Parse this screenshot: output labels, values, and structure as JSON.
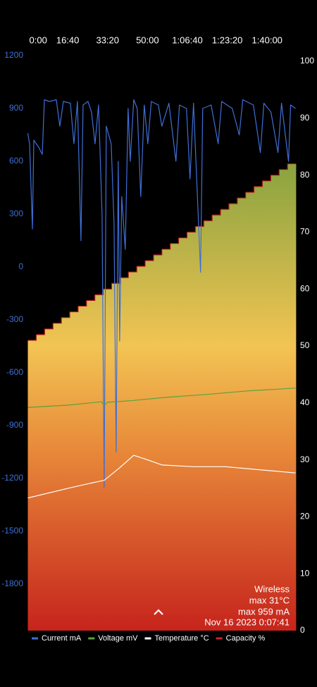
{
  "chart_data": {
    "type": "line",
    "xlim": [
      0,
      6720
    ],
    "xticks": [
      {
        "value": 0,
        "label": "0:00"
      },
      {
        "value": 1000,
        "label": "16:40"
      },
      {
        "value": 2000,
        "label": "33:20"
      },
      {
        "value": 3000,
        "label": "50:00"
      },
      {
        "value": 4000,
        "label": "1:06:40"
      },
      {
        "value": 5000,
        "label": "1:23:20"
      },
      {
        "value": 6000,
        "label": "1:40:00"
      }
    ],
    "ylim": [
      -2064,
      1168
    ],
    "yticks": [
      -1800,
      -1500,
      -1200,
      -900,
      -600,
      -300,
      0,
      300,
      600,
      900,
      1200
    ],
    "y2lim": [
      0,
      100
    ],
    "y2ticks": [
      0,
      10,
      20,
      30,
      40,
      50,
      60,
      70,
      80,
      90,
      100
    ],
    "series": [
      {
        "name": "Current mA",
        "color": "#3f6fd6",
        "x": [
          0,
          44,
          115,
          150,
          273,
          362,
          415,
          538,
          714,
          803,
          891,
          1067,
          1155,
          1244,
          1332,
          1385,
          1508,
          1596,
          1685,
          1773,
          1861,
          1914,
          1967,
          2090,
          2161,
          2214,
          2267,
          2302,
          2355,
          2443,
          2514,
          2567,
          2655,
          2743,
          2831,
          2919,
          3008,
          3096,
          3272,
          3360,
          3537,
          3713,
          3801,
          3978,
          4066,
          4154,
          4331,
          4384,
          4595,
          4772,
          4860,
          5125,
          5301,
          5389,
          5654,
          5830,
          5919,
          6095,
          6271,
          6360,
          6536,
          6589,
          6712
        ],
        "values": [
          760,
          700,
          216,
          720,
          680,
          640,
          950,
          940,
          950,
          800,
          940,
          930,
          700,
          940,
          150,
          920,
          940,
          880,
          700,
          920,
          300,
          -1250,
          800,
          700,
          250,
          -1050,
          600,
          -420,
          400,
          100,
          900,
          600,
          950,
          900,
          400,
          920,
          700,
          940,
          920,
          800,
          930,
          600,
          920,
          900,
          500,
          930,
          -30,
          900,
          920,
          700,
          940,
          900,
          750,
          950,
          920,
          650,
          930,
          880,
          650,
          930,
          600,
          920,
          900
        ]
      },
      {
        "name": "Voltage mV",
        "color": "#5aa13c",
        "axis": "y2",
        "x": [
          0,
          1000,
          1850,
          1914,
          1990,
          2600,
          3500,
          4500,
          5500,
          6712
        ],
        "values": [
          39.2,
          39.6,
          40.2,
          39.5,
          40.1,
          40.4,
          41.0,
          41.5,
          42.1,
          42.6
        ]
      },
      {
        "name": "Temperature °C",
        "color": "#ffffff",
        "axis": "y2",
        "x": [
          0,
          1067,
          1773,
          1914,
          2300,
          2655,
          3000,
          3360,
          4154,
          4948,
          6712
        ],
        "values": [
          23.3,
          25.1,
          26.2,
          26.4,
          28.6,
          30.8,
          30.0,
          29.1,
          28.8,
          28.8,
          27.7
        ]
      },
      {
        "name": "Capacity %",
        "color": "#c62828",
        "axis": "y2",
        "step": true,
        "x": [
          0,
          210,
          420,
          630,
          840,
          1050,
          1260,
          1470,
          1680,
          1890,
          2100,
          2310,
          2520,
          2730,
          2940,
          3150,
          3360,
          3570,
          3780,
          3990,
          4200,
          4410,
          4620,
          4830,
          5040,
          5250,
          5460,
          5670,
          5880,
          6090,
          6300,
          6510
        ],
        "values": [
          51,
          52,
          53,
          54,
          55,
          56,
          57,
          58,
          59,
          60,
          61,
          62,
          63,
          64,
          65,
          66,
          67,
          68,
          69,
          70,
          71,
          72,
          73,
          74,
          75,
          76,
          77,
          78,
          79,
          80,
          81,
          82
        ]
      }
    ],
    "annotations": [
      "Wireless",
      "max 31°C",
      "max 959 mA",
      "Nov 16 2023 0:07:41"
    ]
  }
}
